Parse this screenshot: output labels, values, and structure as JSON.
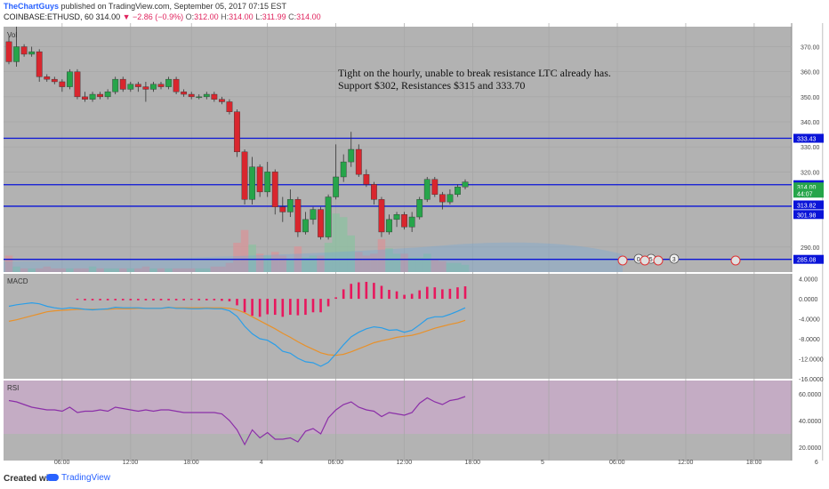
{
  "header": {
    "author": "TheChartGuys",
    "published": "published on TradingView.com, September 05, 2017 07:15 EST",
    "symbol": "COINBASE:ETHUSD, 60",
    "last": "314.00",
    "change": "−2.86 (−0.9%)",
    "o_label": "O:",
    "o_value": "312.00",
    "h_label": "H:",
    "h_value": "314.00",
    "l_label": "L:",
    "l_value": "311.99",
    "c_label": "C:",
    "c_value": "314.00"
  },
  "footer": {
    "created": "Created with",
    "brand": "TradingView"
  },
  "colors": {
    "bg": "#b2b2b2",
    "panel": "#b3b3b3",
    "rsi_band": "#c9a9c9",
    "up": "#26a54a",
    "down": "#d9262e",
    "hline": "#0a14d8",
    "macd": "#2a9ee8",
    "signal": "#e8912a",
    "hist": "#e8175d",
    "rsi": "#8b2fa8"
  },
  "chart_data": [
    {
      "type": "candlestick",
      "panel": "price",
      "pane_label": "Vol",
      "annotation": [
        "Tight on the hourly, unable to break resistance LTC already has.",
        "Support $302, Resistances $315 and 333.70"
      ],
      "ylim": [
        280,
        378
      ],
      "y_ticks": [
        {
          "value": 370,
          "label": "370.00"
        },
        {
          "value": 360,
          "label": "360.00"
        },
        {
          "value": 350,
          "label": "350.00"
        },
        {
          "value": 340,
          "label": "340.00"
        },
        {
          "value": 330,
          "label": "330.00"
        },
        {
          "value": 320,
          "label": "320.00"
        },
        {
          "value": 290,
          "label": "290.00"
        }
      ],
      "price_tags": [
        {
          "value": 333.43,
          "label": "333.43",
          "color": "#0a14d8"
        },
        {
          "value": 314.89,
          "label": "314.89",
          "color": "#0a14d8"
        },
        {
          "value": 314.0,
          "label": "314.00",
          "color": "#26a54a"
        },
        {
          "value": 311.5,
          "label": "44:07",
          "color": "#26a54a"
        },
        {
          "value": 306.82,
          "label": "313.82",
          "color": "#0a14d8"
        },
        {
          "value": 302.98,
          "label": "301.98",
          "color": "#0a14d8"
        },
        {
          "value": 285.08,
          "label": "285.08",
          "color": "#0a14d8"
        }
      ],
      "hlines": [
        333.43,
        314.89,
        306.3,
        285.08
      ],
      "candles": [
        [
          372,
          364,
          374,
          363
        ],
        [
          364,
          370,
          378,
          362
        ],
        [
          370,
          367,
          371,
          366
        ],
        [
          367,
          368,
          370,
          366
        ],
        [
          368,
          358,
          369,
          356
        ],
        [
          358,
          357,
          359,
          356
        ],
        [
          357,
          356,
          358,
          355
        ],
        [
          356,
          354,
          357,
          352
        ],
        [
          354,
          360,
          361,
          353
        ],
        [
          360,
          350,
          361,
          349
        ],
        [
          350,
          349,
          352,
          348
        ],
        [
          349,
          351,
          352,
          348
        ],
        [
          351,
          350,
          352,
          349
        ],
        [
          350,
          352,
          353,
          349
        ],
        [
          352,
          357,
          358,
          351
        ],
        [
          357,
          353,
          358,
          352
        ],
        [
          353,
          355,
          356,
          352
        ],
        [
          355,
          354,
          356,
          352
        ],
        [
          354,
          353,
          356,
          348
        ],
        [
          353,
          355,
          356,
          352
        ],
        [
          355,
          354,
          356,
          353
        ],
        [
          354,
          357,
          358,
          353
        ],
        [
          357,
          352,
          358,
          351
        ],
        [
          352,
          351,
          353,
          350
        ],
        [
          351,
          350,
          352,
          349
        ],
        [
          350,
          350,
          351,
          349
        ],
        [
          350,
          351,
          352,
          349
        ],
        [
          351,
          349,
          352,
          348
        ],
        [
          349,
          348,
          350,
          347
        ],
        [
          348,
          344,
          349,
          343
        ],
        [
          344,
          328,
          345,
          326
        ],
        [
          328,
          309,
          329,
          307
        ],
        [
          309,
          322,
          326,
          307
        ],
        [
          322,
          312,
          323,
          310
        ],
        [
          312,
          320,
          324,
          310
        ],
        [
          320,
          306,
          321,
          303
        ],
        [
          306,
          304,
          310,
          300
        ],
        [
          304,
          309,
          313,
          302
        ],
        [
          309,
          296,
          310,
          294
        ],
        [
          296,
          301,
          304,
          295
        ],
        [
          301,
          305,
          306,
          299
        ],
        [
          305,
          294,
          306,
          293
        ],
        [
          294,
          310,
          311,
          293
        ],
        [
          310,
          318,
          331,
          309
        ],
        [
          318,
          324,
          327,
          316
        ],
        [
          324,
          329,
          336,
          322
        ],
        [
          329,
          319,
          331,
          318
        ],
        [
          319,
          315,
          321,
          314
        ],
        [
          315,
          309,
          316,
          307
        ],
        [
          309,
          296,
          310,
          294
        ],
        [
          296,
          301,
          303,
          295
        ],
        [
          301,
          303,
          304,
          298
        ],
        [
          303,
          298,
          304,
          297
        ],
        [
          298,
          302,
          304,
          296
        ],
        [
          302,
          309,
          310,
          301
        ],
        [
          309,
          317,
          318,
          308
        ],
        [
          317,
          311,
          318,
          310
        ],
        [
          311,
          308,
          312,
          305
        ],
        [
          308,
          311,
          313,
          307
        ],
        [
          311,
          314,
          315,
          310
        ],
        [
          314,
          316,
          317,
          313
        ]
      ],
      "volume": [
        0.9,
        0.3,
        0.2,
        0.2,
        0.2,
        0.3,
        0.2,
        0.2,
        0.2,
        0.2,
        0.2,
        0.3,
        0.2,
        0.2,
        0.2,
        0.2,
        0.2,
        0.2,
        0.3,
        0.2,
        0.2,
        0.2,
        0.2,
        0.2,
        0.2,
        0.2,
        0.2,
        0.3,
        0.3,
        0.5,
        1.6,
        2.3,
        1.5,
        1.0,
        0.9,
        1.1,
        0.9,
        0.7,
        1.4,
        0.8,
        0.9,
        0.9,
        1.6,
        3.2,
        3.0,
        2.0,
        1.1,
        0.9,
        1.0,
        1.8,
        1.3,
        1.0,
        1.0,
        0.8,
        0.8,
        1.0,
        0.7,
        0.6,
        0.5,
        0.5,
        0.4
      ],
      "x_labels": [
        {
          "i": 7,
          "label": "06:00"
        },
        {
          "i": 16,
          "label": "12:00"
        },
        {
          "i": 24,
          "label": "18:00"
        },
        {
          "i": 34,
          "label": "4"
        },
        {
          "i": 43,
          "label": "06:00"
        },
        {
          "i": 52,
          "label": "12:00"
        },
        {
          "i": 61,
          "label": "18:00"
        },
        {
          "i": 71,
          "label": "5"
        },
        {
          "i": 80,
          "label": "06:00"
        },
        {
          "i": 89,
          "label": "12:00"
        },
        {
          "i": 98,
          "label": "18:00"
        },
        {
          "i": 107,
          "label": "6"
        }
      ],
      "event_markers": [
        "0",
        "5",
        "3"
      ]
    },
    {
      "type": "line",
      "panel": "macd",
      "pane_label": "MACD",
      "ylim": [
        -16,
        5
      ],
      "y_ticks": [
        {
          "value": 4,
          "label": "4.0000"
        },
        {
          "value": 0,
          "label": "0.0000"
        },
        {
          "value": -4,
          "label": "-4.0000"
        },
        {
          "value": -8,
          "label": "-8.0000"
        },
        {
          "value": -12,
          "label": "-12.0000"
        },
        {
          "value": -16,
          "label": "-16.0000"
        }
      ],
      "series": [
        {
          "values": [
            -1.5,
            -1.2,
            -1,
            -0.8,
            -1,
            -1.5,
            -1.8,
            -2,
            -1.8,
            -1.9,
            -2.1,
            -2.2,
            -2.1,
            -2,
            -1.7,
            -1.8,
            -1.8,
            -1.8,
            -1.9,
            -1.9,
            -1.9,
            -1.7,
            -1.9,
            -1.9,
            -2,
            -2,
            -1.9,
            -2,
            -2,
            -2.4,
            -3.5,
            -5.5,
            -7,
            -8,
            -8.3,
            -9.2,
            -10.5,
            -10.9,
            -11.9,
            -12.6,
            -12.8,
            -13.5,
            -12.7,
            -11,
            -9.2,
            -7.6,
            -6.7,
            -6,
            -5.6,
            -5.8,
            -6.3,
            -6.2,
            -6.7,
            -6.3,
            -5.2,
            -4,
            -3.6,
            -3.6,
            -3.1,
            -2.5,
            -1.8
          ]
        },
        {
          "values": [
            -4.5,
            -4.2,
            -3.8,
            -3.4,
            -3,
            -2.6,
            -2.4,
            -2.3,
            -2.2,
            -2.1,
            -2.1,
            -2.1,
            -2.1,
            -2.1,
            -2,
            -2,
            -2,
            -1.9,
            -1.9,
            -1.9,
            -1.9,
            -1.8,
            -1.8,
            -1.8,
            -1.8,
            -1.8,
            -1.8,
            -1.8,
            -1.8,
            -1.9,
            -2.2,
            -2.8,
            -3.6,
            -4.4,
            -5.2,
            -6,
            -6.9,
            -7.7,
            -8.6,
            -9.4,
            -10.1,
            -10.8,
            -11.2,
            -11.3,
            -11.1,
            -10.6,
            -10,
            -9.4,
            -8.8,
            -8.4,
            -8.1,
            -7.7,
            -7.5,
            -7.3,
            -6.9,
            -6.4,
            -5.9,
            -5.5,
            -5.1,
            -4.8,
            -4.3
          ]
        }
      ],
      "histogram": [
        0,
        0,
        0,
        0,
        0,
        0,
        0,
        0,
        0,
        -0.2,
        -0.3,
        -0.3,
        -0.3,
        -0.3,
        -0.3,
        -0.3,
        -0.3,
        -0.3,
        -0.3,
        -0.3,
        -0.3,
        -0.3,
        -0.3,
        -0.3,
        -0.2,
        -0.3,
        -0.3,
        -0.3,
        -0.4,
        -0.5,
        -1.3,
        -2.7,
        -3.4,
        -3.6,
        -3.1,
        -3.2,
        -3.6,
        -3.2,
        -3.3,
        -3.2,
        -2.7,
        -2.7,
        -1.5,
        0.3,
        1.9,
        3.0,
        3.3,
        3.4,
        3.2,
        2.6,
        1.8,
        1.5,
        0.8,
        1.0,
        1.7,
        2.4,
        2.3,
        1.9,
        2.0,
        2.3,
        2.5
      ]
    },
    {
      "type": "line",
      "panel": "rsi",
      "pane_label": "RSI",
      "ylim": [
        10,
        70
      ],
      "y_ticks": [
        {
          "value": 60,
          "label": "60.0000"
        },
        {
          "value": 40,
          "label": "40.0000"
        },
        {
          "value": 20,
          "label": "20.0000"
        }
      ],
      "band": [
        30,
        70
      ],
      "values": [
        55,
        54,
        52,
        50,
        49,
        48,
        48,
        47,
        50,
        46,
        47,
        47,
        48,
        47,
        50,
        49,
        48,
        47,
        48,
        47,
        48,
        48,
        47,
        46,
        46,
        46,
        46,
        46,
        45,
        40,
        33,
        22,
        33,
        27,
        31,
        26,
        26,
        27,
        24,
        32,
        34,
        30,
        42,
        48,
        52,
        54,
        50,
        48,
        47,
        43,
        46,
        45,
        44,
        46,
        53,
        57,
        54,
        52,
        55,
        56,
        58
      ]
    }
  ]
}
